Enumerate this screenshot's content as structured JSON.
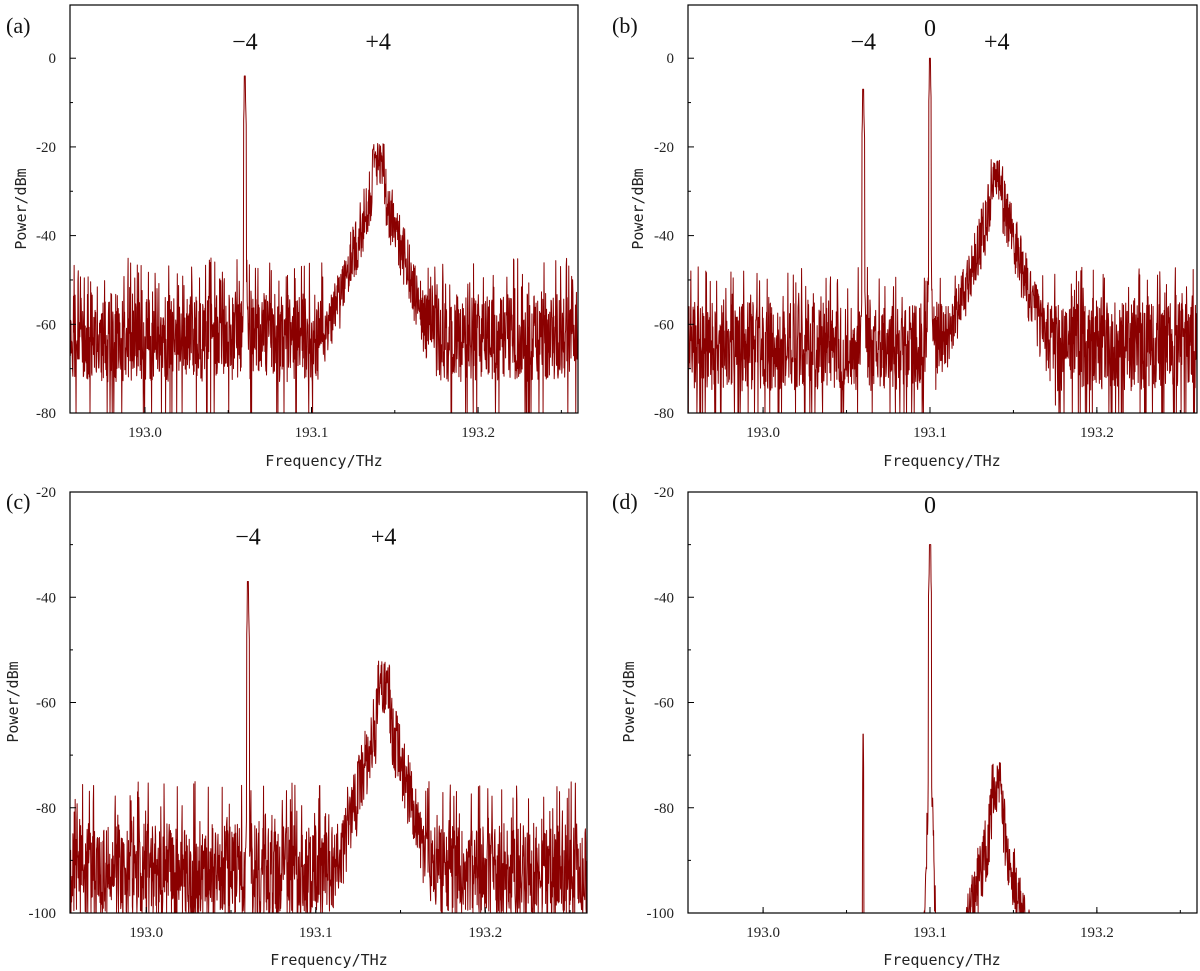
{
  "colors": {
    "trace": "#8b0000",
    "axis": "#000000"
  },
  "chart_data": [
    {
      "type": "line",
      "panel": "(a)",
      "xlabel": "Frequency/THz",
      "ylabel": "Power/dBm",
      "xlim": [
        192.955,
        193.26
      ],
      "ylim": [
        -80,
        12
      ],
      "xticks": [
        193.0,
        193.1,
        193.2
      ],
      "xtick_labels": [
        "193.0",
        "193.1",
        "193.2"
      ],
      "yticks": [
        -80,
        -60,
        -40,
        -20,
        0
      ],
      "ytick_labels": [
        "-80",
        "-60",
        "-40",
        "-20",
        "0"
      ],
      "grid": false,
      "annotations": [
        {
          "text": "−4",
          "x": 193.06,
          "y": 2
        },
        {
          "text": "+4",
          "x": 193.14,
          "y": 2
        }
      ],
      "floor": -80,
      "peaks": [
        {
          "x": 193.06,
          "y": -4,
          "width": 0.0008
        },
        {
          "x": 193.14,
          "y": -19,
          "width": 0.006
        }
      ],
      "noise": {
        "base": -63,
        "amplitude": 10
      }
    },
    {
      "type": "line",
      "panel": "(b)",
      "xlabel": "Frequency/THz",
      "ylabel": "Power/dBm",
      "xlim": [
        192.955,
        193.26
      ],
      "ylim": [
        -80,
        12
      ],
      "xticks": [
        193.0,
        193.1,
        193.2
      ],
      "xtick_labels": [
        "193.0",
        "193.1",
        "193.2"
      ],
      "yticks": [
        -80,
        -60,
        -40,
        -20,
        0
      ],
      "ytick_labels": [
        "-80",
        "-60",
        "-40",
        "-20",
        "0"
      ],
      "grid": false,
      "annotations": [
        {
          "text": "−4",
          "x": 193.06,
          "y": 2
        },
        {
          "text": "0",
          "x": 193.1,
          "y": 5
        },
        {
          "text": "+4",
          "x": 193.14,
          "y": 2
        }
      ],
      "floor": -80,
      "peaks": [
        {
          "x": 193.06,
          "y": -7,
          "width": 0.0008
        },
        {
          "x": 193.1,
          "y": 0,
          "width": 0.0008
        },
        {
          "x": 193.14,
          "y": -22,
          "width": 0.006
        }
      ],
      "noise": {
        "base": -65,
        "amplitude": 10
      }
    },
    {
      "type": "line",
      "panel": "(c)",
      "xlabel": "Frequency/THz",
      "ylabel": "Power/dBm",
      "xlim": [
        192.955,
        193.26
      ],
      "ylim": [
        -100,
        -20
      ],
      "xticks": [
        193.0,
        193.1,
        193.2
      ],
      "xtick_labels": [
        "193.0",
        "193.1",
        "193.2"
      ],
      "yticks": [
        -100,
        -80,
        -60,
        -40,
        -20
      ],
      "ytick_labels": [
        "-100",
        "-80",
        "-60",
        "-40",
        "-20"
      ],
      "grid": false,
      "annotations": [
        {
          "text": "−4",
          "x": 193.06,
          "y": -30
        },
        {
          "text": "+4",
          "x": 193.14,
          "y": -30
        }
      ],
      "floor": -100,
      "peaks": [
        {
          "x": 193.06,
          "y": -37,
          "width": 0.0008
        },
        {
          "x": 193.14,
          "y": -52,
          "width": 0.006
        }
      ],
      "noise": {
        "base": -92,
        "amplitude": 9
      }
    },
    {
      "type": "line",
      "panel": "(d)",
      "xlabel": "Frequency/THz",
      "ylabel": "Power/dBm",
      "xlim": [
        192.955,
        193.26
      ],
      "ylim": [
        -100,
        -20
      ],
      "xticks": [
        193.0,
        193.1,
        193.2
      ],
      "xtick_labels": [
        "193.0",
        "193.1",
        "193.2"
      ],
      "yticks": [
        -100,
        -80,
        -60,
        -40,
        -20
      ],
      "ytick_labels": [
        "-100",
        "-80",
        "-60",
        "-40",
        "-20"
      ],
      "grid": false,
      "annotations": [
        {
          "text": "0",
          "x": 193.1,
          "y": -24
        }
      ],
      "floor": -100,
      "peaks": [
        {
          "x": 193.06,
          "y": -66,
          "width": 0.0004
        },
        {
          "x": 193.1,
          "y": -30,
          "width": 0.001
        },
        {
          "x": 193.14,
          "y": -71,
          "width": 0.005
        }
      ],
      "noise": {
        "base": -100,
        "amplitude": 0
      }
    }
  ]
}
